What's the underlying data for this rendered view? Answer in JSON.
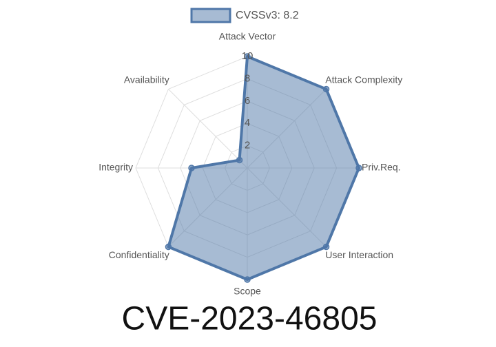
{
  "chart_data": {
    "type": "radar",
    "title": "CVE-2023-46805",
    "categories": [
      "Attack Vector",
      "Attack Complexity",
      "Priv.Req.",
      "User Interaction",
      "Scope",
      "Confidentiality",
      "Integrity",
      "Availability"
    ],
    "series": [
      {
        "name": "CVSSv3: 8.2",
        "color": "#4f77a8",
        "values": [
          10,
          10,
          10,
          10,
          10,
          10,
          5,
          1
        ]
      }
    ],
    "rlim": [
      0,
      10
    ],
    "rticks": [
      2,
      4,
      6,
      8,
      10
    ],
    "grid": true,
    "legend": "top"
  }
}
